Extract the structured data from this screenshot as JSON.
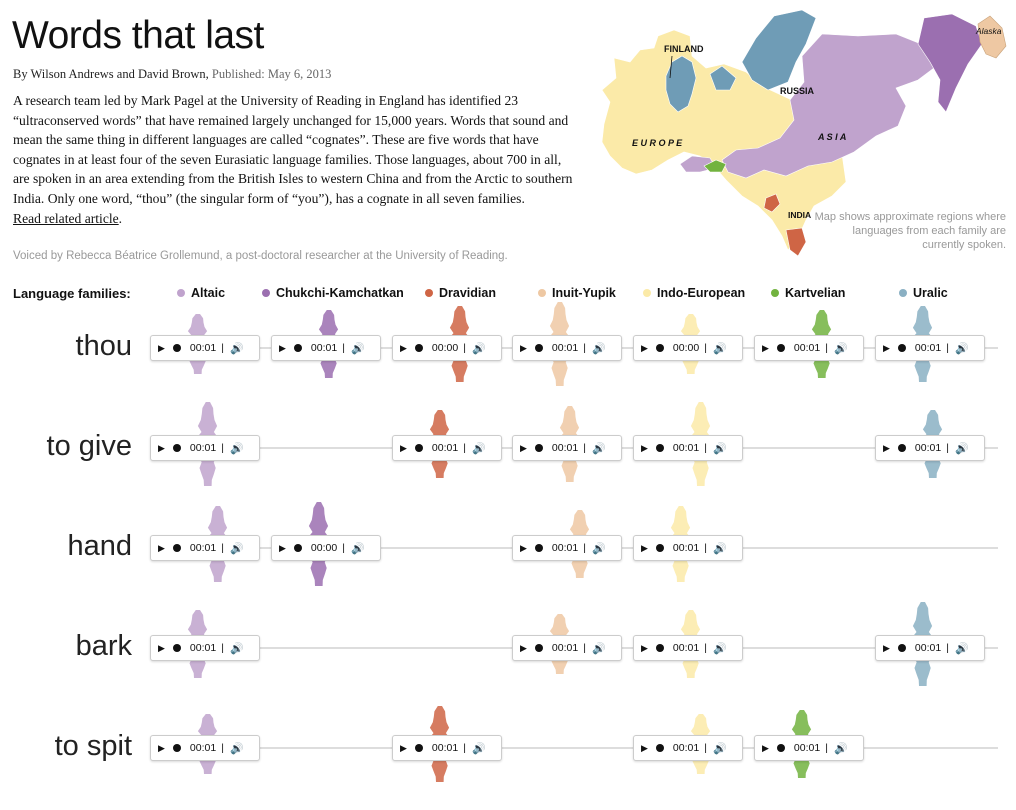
{
  "header": {
    "title": "Words that last",
    "byline_authors": "By Wilson Andrews and David Brown,",
    "byline_published": "Published: May 6, 2013",
    "intro": "A research team led by Mark Pagel at the University of Reading in England has identified 23 “ultraconserved words” that have remained largely unchanged for 15,000 years. Words that sound and mean the same thing in different languages are called “cognates”. These are five words that have cognates in at least four of the seven Eurasiatic language families. Those languages, about 700 in all, are spoken in an area extending from the British Isles to western China and from the Arctic to southern India. Only one word, “thou” (the singular form of “you”), has a cognate in all seven families.",
    "related_link": "Read related article",
    "link_suffix": ".",
    "voiced": "Voiced by Rebecca Béatrice Grollemund, a post-doctoral researcher at the University of Reading."
  },
  "map": {
    "labels": {
      "finland": "FINLAND",
      "russia": "RUSSIA",
      "europe": "E U R O P E",
      "asia": "A S I A",
      "india": "INDIA",
      "alaska": "Alaska"
    },
    "note": "Map shows approximate regions where languages from each family are currently spoken."
  },
  "legend": {
    "title": "Language families:",
    "families": [
      {
        "name": "Altaic",
        "color": "#c0a3cd"
      },
      {
        "name": "Chukchi-Kamchatkan",
        "color": "#9b6fb0"
      },
      {
        "name": "Dravidian",
        "color": "#cf6545"
      },
      {
        "name": "Inuit-Yupik",
        "color": "#eec8a3"
      },
      {
        "name": "Indo-European",
        "color": "#fbeaa8"
      },
      {
        "name": "Kartvelian",
        "color": "#72b33f"
      },
      {
        "name": "Uralic",
        "color": "#8ab0c3"
      }
    ]
  },
  "words": [
    {
      "word": "thou",
      "cognates": [
        {
          "family": 0,
          "time": "00:01"
        },
        {
          "family": 1,
          "time": "00:01"
        },
        {
          "family": 2,
          "time": "00:00"
        },
        {
          "family": 3,
          "time": "00:01"
        },
        {
          "family": 4,
          "time": "00:00"
        },
        {
          "family": 5,
          "time": "00:01"
        },
        {
          "family": 6,
          "time": "00:01"
        }
      ]
    },
    {
      "word": "to give",
      "cognates": [
        {
          "family": 0,
          "time": "00:01"
        },
        {
          "family": 2,
          "time": "00:01"
        },
        {
          "family": 3,
          "time": "00:01"
        },
        {
          "family": 4,
          "time": "00:01"
        },
        {
          "family": 6,
          "time": "00:01"
        }
      ]
    },
    {
      "word": "hand",
      "cognates": [
        {
          "family": 0,
          "time": "00:01"
        },
        {
          "family": 1,
          "time": "00:00"
        },
        {
          "family": 3,
          "time": "00:01"
        },
        {
          "family": 4,
          "time": "00:01"
        }
      ]
    },
    {
      "word": "bark",
      "cognates": [
        {
          "family": 0,
          "time": "00:01"
        },
        {
          "family": 3,
          "time": "00:01"
        },
        {
          "family": 4,
          "time": "00:01"
        },
        {
          "family": 6,
          "time": "00:01"
        }
      ]
    },
    {
      "word": "to spit",
      "cognates": [
        {
          "family": 0,
          "time": "00:01"
        },
        {
          "family": 2,
          "time": "00:01"
        },
        {
          "family": 4,
          "time": "00:01"
        },
        {
          "family": 5,
          "time": "00:01"
        }
      ]
    }
  ]
}
